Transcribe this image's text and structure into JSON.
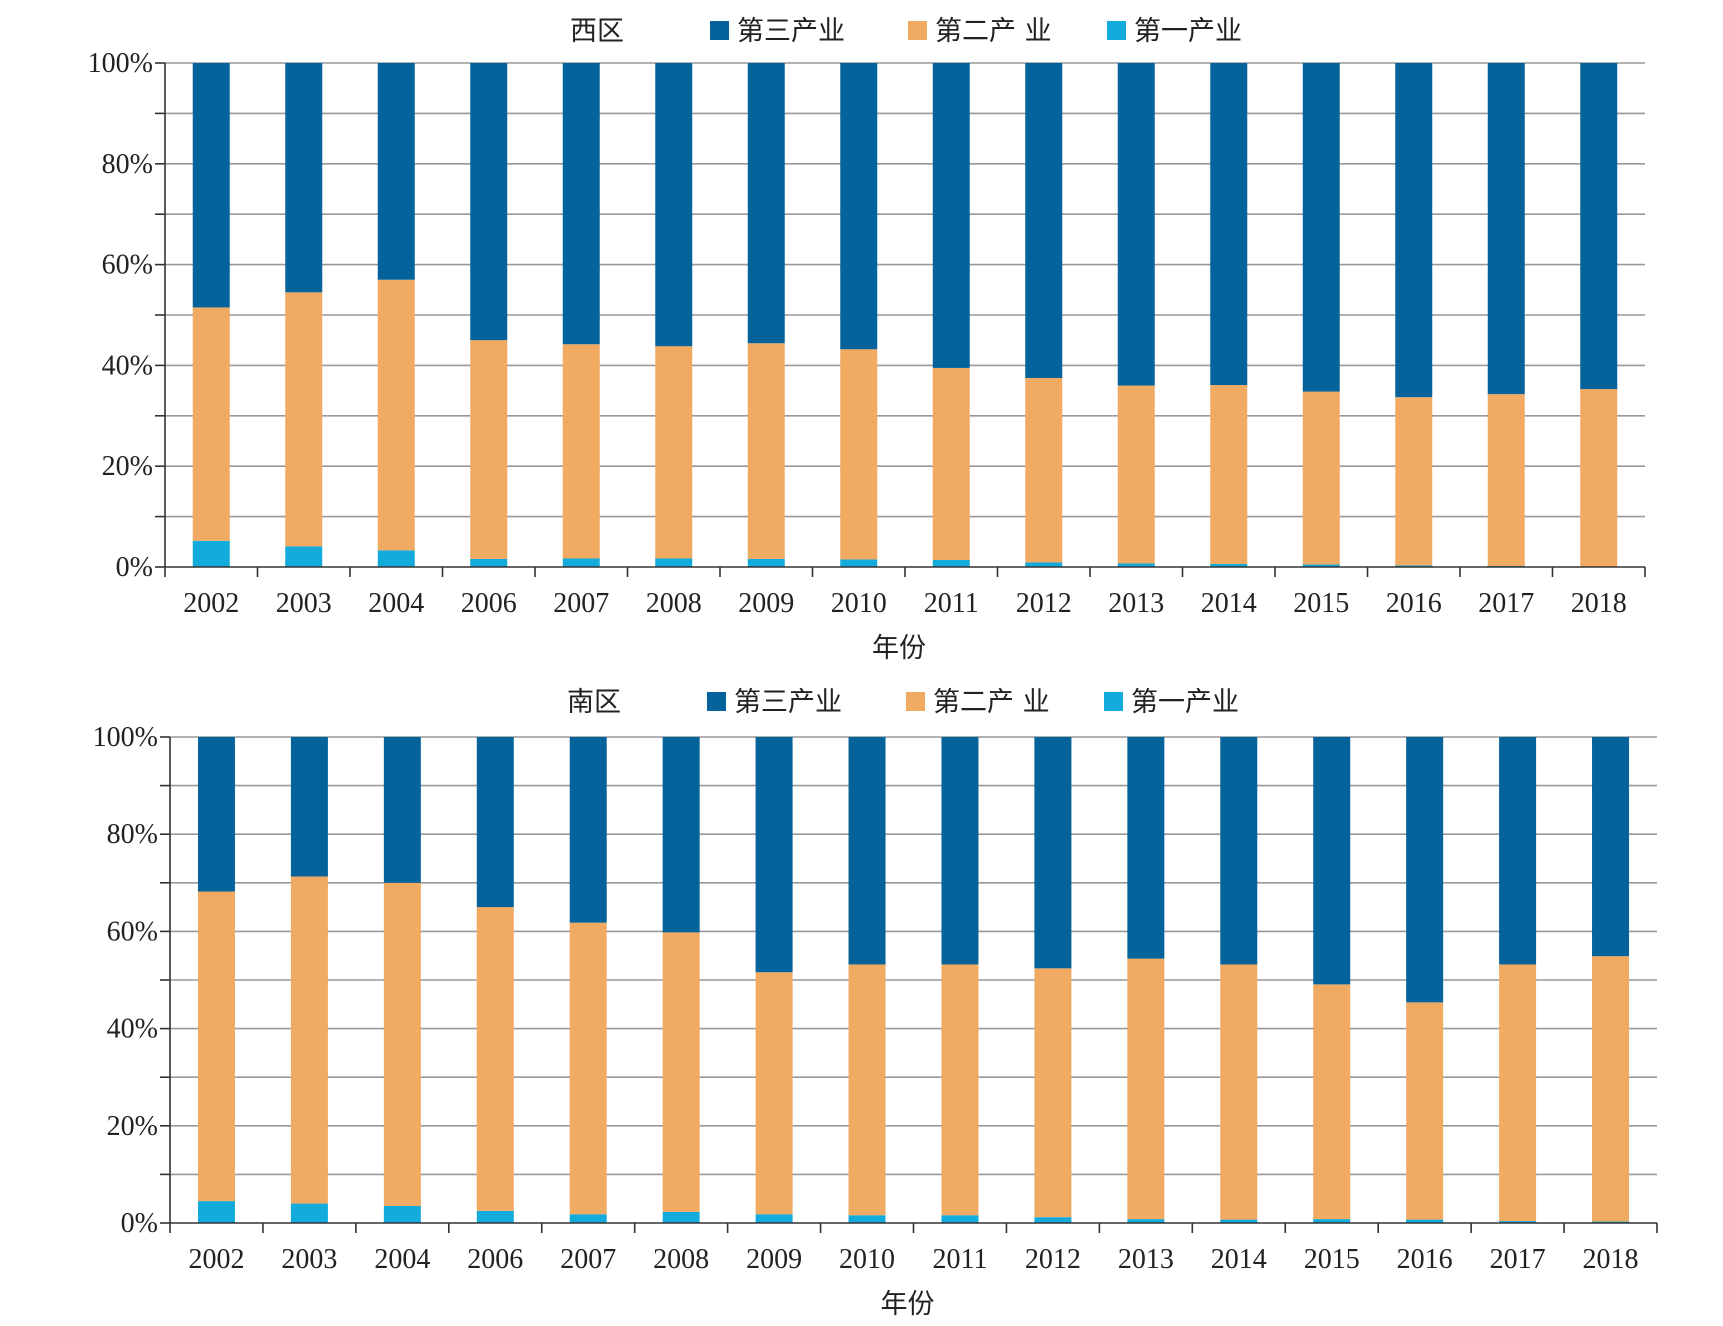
{
  "colors": {
    "tertiary": "#04639A",
    "secondary": "#F0AA62",
    "primary": "#13AADC",
    "grid": "#999999",
    "axis": "#333333"
  },
  "chart_data": [
    {
      "type": "bar",
      "stacked": true,
      "title": "西区",
      "xlabel": "年份",
      "ylabel": "",
      "ylim": [
        0,
        100
      ],
      "yticks": [
        "0%",
        "20%",
        "40%",
        "60%",
        "80%",
        "100%"
      ],
      "legend_position": "top",
      "categories": [
        "2002",
        "2003",
        "2004",
        "2006",
        "2007",
        "2008",
        "2009",
        "2010",
        "2011",
        "2012",
        "2013",
        "2014",
        "2015",
        "2016",
        "2017",
        "2018"
      ],
      "series": [
        {
          "name": "第三产业",
          "color_key": "tertiary",
          "values": [
            48.5,
            45.5,
            43.0,
            55.0,
            55.8,
            56.2,
            55.6,
            56.8,
            60.5,
            62.5,
            64.0,
            63.9,
            65.2,
            66.3,
            65.7,
            64.7
          ]
        },
        {
          "name": "第二产 业",
          "color_key": "secondary",
          "values": [
            46.3,
            50.4,
            53.7,
            43.4,
            42.5,
            42.1,
            42.8,
            41.7,
            38.1,
            36.6,
            35.3,
            35.5,
            34.3,
            33.4,
            34.1,
            35.2
          ]
        },
        {
          "name": "第一产业",
          "color_key": "primary",
          "values": [
            5.2,
            4.1,
            3.3,
            1.6,
            1.7,
            1.7,
            1.6,
            1.5,
            1.4,
            0.9,
            0.7,
            0.6,
            0.5,
            0.3,
            0.2,
            0.1
          ]
        }
      ]
    },
    {
      "type": "bar",
      "stacked": true,
      "title": "南区",
      "xlabel": "年份",
      "ylabel": "",
      "ylim": [
        0,
        100
      ],
      "yticks": [
        "0%",
        "20%",
        "40%",
        "60%",
        "80%",
        "100%"
      ],
      "legend_position": "top",
      "categories": [
        "2002",
        "2003",
        "2004",
        "2006",
        "2007",
        "2008",
        "2009",
        "2010",
        "2011",
        "2012",
        "2013",
        "2014",
        "2015",
        "2016",
        "2017",
        "2018"
      ],
      "series": [
        {
          "name": "第三产业",
          "color_key": "tertiary",
          "values": [
            31.8,
            28.7,
            30.0,
            35.0,
            38.2,
            40.2,
            48.4,
            46.8,
            46.8,
            47.6,
            45.6,
            46.8,
            50.9,
            54.6,
            46.8,
            45.1
          ]
        },
        {
          "name": "第二产 业",
          "color_key": "secondary",
          "values": [
            63.7,
            67.3,
            66.5,
            62.5,
            60.0,
            57.5,
            49.8,
            51.6,
            51.6,
            51.2,
            53.6,
            52.5,
            48.3,
            44.7,
            52.8,
            54.6
          ]
        },
        {
          "name": "第一产业",
          "color_key": "primary",
          "values": [
            4.5,
            4.0,
            3.5,
            2.5,
            1.8,
            2.3,
            1.8,
            1.6,
            1.6,
            1.2,
            0.8,
            0.7,
            0.8,
            0.7,
            0.4,
            0.3
          ]
        }
      ]
    }
  ]
}
